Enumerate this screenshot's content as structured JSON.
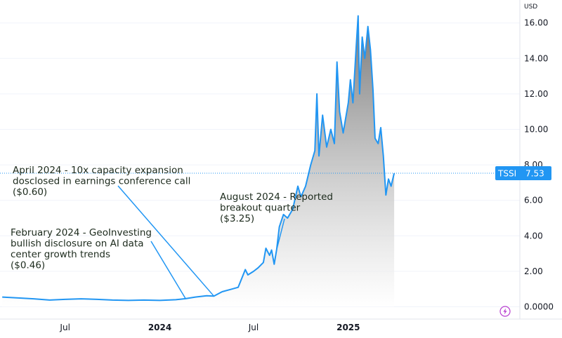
{
  "chart_data": {
    "type": "area",
    "ticker": "TSSI",
    "last_value": "7.53",
    "currency": "USD",
    "y_ticks": [
      "16.00",
      "14.00",
      "12.00",
      "10.00",
      "8.00",
      "6.00",
      "4.00",
      "2.00",
      "0.0000"
    ],
    "x_ticks": [
      {
        "label": "Jul",
        "date": "2023-07-01",
        "bold": false
      },
      {
        "label": "2024",
        "date": "2024-01-01",
        "bold": true
      },
      {
        "label": "Jul",
        "date": "2024-07-01",
        "bold": false
      },
      {
        "label": "2025",
        "date": "2025-01-01",
        "bold": true
      }
    ],
    "ylim": [
      0,
      16.5
    ],
    "series": [
      {
        "color": "#2196f3",
        "points": [
          [
            "2023-03-01",
            0.55
          ],
          [
            "2023-04-01",
            0.5
          ],
          [
            "2023-05-01",
            0.45
          ],
          [
            "2023-06-01",
            0.38
          ],
          [
            "2023-07-01",
            0.42
          ],
          [
            "2023-08-01",
            0.45
          ],
          [
            "2023-09-01",
            0.42
          ],
          [
            "2023-10-01",
            0.38
          ],
          [
            "2023-11-01",
            0.36
          ],
          [
            "2023-12-01",
            0.38
          ],
          [
            "2024-01-01",
            0.36
          ],
          [
            "2024-02-01",
            0.4
          ],
          [
            "2024-02-20",
            0.46
          ],
          [
            "2024-03-10",
            0.55
          ],
          [
            "2024-04-01",
            0.62
          ],
          [
            "2024-04-15",
            0.6
          ],
          [
            "2024-05-01",
            0.85
          ],
          [
            "2024-05-20",
            1.0
          ],
          [
            "2024-06-01",
            1.1
          ],
          [
            "2024-06-15",
            2.1
          ],
          [
            "2024-06-20",
            1.8
          ],
          [
            "2024-07-01",
            2.0
          ],
          [
            "2024-07-10",
            2.2
          ],
          [
            "2024-07-20",
            2.5
          ],
          [
            "2024-07-25",
            3.3
          ],
          [
            "2024-08-01",
            2.9
          ],
          [
            "2024-08-05",
            3.2
          ],
          [
            "2024-08-10",
            2.4
          ],
          [
            "2024-08-15",
            3.25
          ],
          [
            "2024-08-20",
            4.5
          ],
          [
            "2024-08-28",
            5.2
          ],
          [
            "2024-09-05",
            5.0
          ],
          [
            "2024-09-15",
            5.5
          ],
          [
            "2024-09-25",
            6.8
          ],
          [
            "2024-10-01",
            6.2
          ],
          [
            "2024-10-10",
            6.8
          ],
          [
            "2024-10-20",
            8.0
          ],
          [
            "2024-10-28",
            8.8
          ],
          [
            "2024-11-01",
            12.0
          ],
          [
            "2024-11-05",
            8.5
          ],
          [
            "2024-11-12",
            10.8
          ],
          [
            "2024-11-20",
            9.0
          ],
          [
            "2024-11-28",
            10.0
          ],
          [
            "2024-12-05",
            9.2
          ],
          [
            "2024-12-10",
            13.8
          ],
          [
            "2024-12-15",
            11.0
          ],
          [
            "2024-12-22",
            9.8
          ],
          [
            "2025-01-01",
            11.5
          ],
          [
            "2025-01-05",
            12.8
          ],
          [
            "2025-01-10",
            11.5
          ],
          [
            "2025-01-16",
            14.5
          ],
          [
            "2025-01-20",
            16.4
          ],
          [
            "2025-01-23",
            12.0
          ],
          [
            "2025-01-28",
            15.2
          ],
          [
            "2025-02-02",
            14.0
          ],
          [
            "2025-02-08",
            15.8
          ],
          [
            "2025-02-13",
            14.5
          ],
          [
            "2025-02-18",
            12.2
          ],
          [
            "2025-02-22",
            9.5
          ],
          [
            "2025-02-28",
            9.2
          ],
          [
            "2025-03-05",
            10.1
          ],
          [
            "2025-03-10",
            8.5
          ],
          [
            "2025-03-15",
            6.3
          ],
          [
            "2025-03-20",
            7.2
          ],
          [
            "2025-03-25",
            6.8
          ],
          [
            "2025-03-31",
            7.53
          ]
        ]
      }
    ]
  },
  "annotations": [
    {
      "lines": [
        "April 2024 - 10x capacity expansion",
        "dosclosed in earnings conference call",
        "($0.60)"
      ],
      "target_date": "2024-04-15",
      "target_value": 0.6
    },
    {
      "lines": [
        "August 2024 - Reported",
        "breakout quarter",
        "($3.25)"
      ],
      "target_date": "2024-08-15",
      "target_value": 3.25
    },
    {
      "lines": [
        "February 2024 - GeoInvesting",
        "bullish disclosure on AI data",
        "center growth trends",
        "($0.46)"
      ],
      "target_date": "2024-02-20",
      "target_value": 0.46
    }
  ],
  "icons": {
    "bottom_right": "lightning-icon"
  }
}
